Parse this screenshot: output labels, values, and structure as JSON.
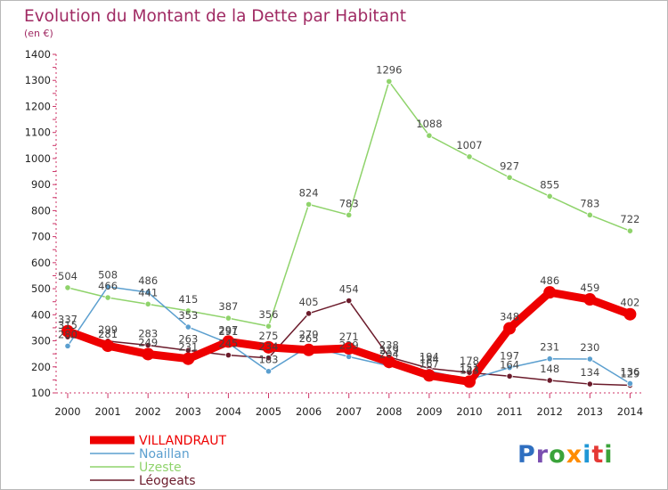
{
  "chart_data": {
    "type": "line",
    "title": "Evolution du Montant de la Dette par Habitant",
    "subtitle": "(en €)",
    "x": [
      "2000",
      "2001",
      "2002",
      "2003",
      "2004",
      "2005",
      "2006",
      "2007",
      "2008",
      "2009",
      "2010",
      "2011",
      "2012",
      "2013",
      "2014"
    ],
    "ylim": [
      100,
      1400
    ],
    "yticks": [
      100,
      200,
      300,
      400,
      500,
      600,
      700,
      800,
      900,
      1000,
      1100,
      1200,
      1300,
      1400
    ],
    "grid": false,
    "legend_position": "bottom-left",
    "series": [
      {
        "name": "VILLANDRAUT",
        "color": "#ee0000",
        "values": [
          337,
          281,
          249,
          231,
          297,
          275,
          265,
          271,
          219,
          167,
          143,
          348,
          486,
          459,
          402
        ]
      },
      {
        "name": "Noaillan",
        "color": "#5b9fcf",
        "values": [
          280,
          508,
          486,
          353,
          291,
          183,
          279,
          239,
          204,
          184,
          151,
          197,
          231,
          230,
          136
        ]
      },
      {
        "name": "Uzeste",
        "color": "#8fd36b",
        "values": [
          504,
          466,
          441,
          415,
          387,
          356,
          824,
          783,
          1296,
          1088,
          1007,
          927,
          855,
          783,
          722
        ]
      },
      {
        "name": "Léogeats",
        "color": "#6b1b2b",
        "values": [
          315,
          299,
          283,
          263,
          245,
          234,
          405,
          454,
          238,
          194,
          178,
          164,
          148,
          134,
          129
        ]
      }
    ]
  },
  "logo": {
    "text": "Proxiti",
    "letters": [
      "P",
      "r",
      "o",
      "x",
      "i",
      "t",
      "i"
    ],
    "colors": [
      "#2f6fc0",
      "#7a4fb0",
      "#3aa33a",
      "#ff8c00",
      "#1f97d6",
      "#e53935",
      "#3aa33a"
    ]
  }
}
